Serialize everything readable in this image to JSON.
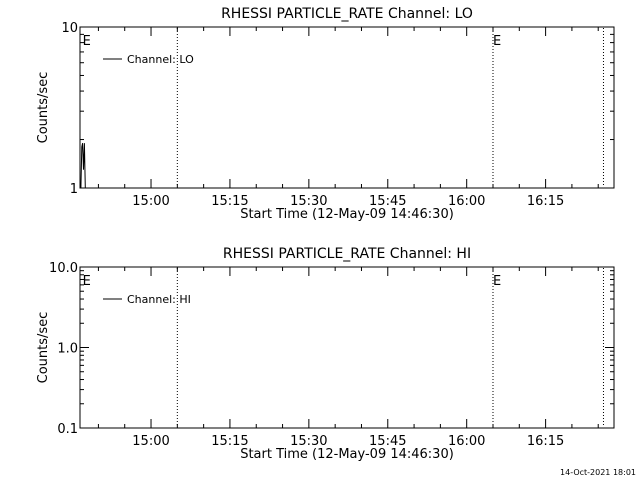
{
  "footer_timestamp": "14-Oct-2021 18:01",
  "chart_data": [
    {
      "type": "line",
      "title": "RHESSI PARTICLE_RATE Channel: LO",
      "xlabel": "Start Time (12-May-09 14:46:30)",
      "ylabel": "Counts/sec",
      "yscale": "log",
      "ylim": [
        1,
        10
      ],
      "ytick_values": [
        1,
        10
      ],
      "ytick_labels": [
        "1",
        "10"
      ],
      "xlim": [
        "14:46:30",
        "16:28:00"
      ],
      "xtick_values": [
        "15:00",
        "15:15",
        "15:30",
        "15:45",
        "16:00",
        "16:15"
      ],
      "xtick_labels": [
        "15:00",
        "15:15",
        "15:30",
        "15:45",
        "16:00",
        "16:15"
      ],
      "grid": false,
      "legend_position": "top-left",
      "series": [
        {
          "name": "Channel: LO",
          "x": [
            "14:46:40",
            "14:46:50",
            "14:47:00",
            "14:47:10",
            "14:47:20",
            "14:47:30"
          ],
          "y": [
            1.0,
            1.8,
            1.9,
            1.3,
            1.9,
            1.0
          ]
        }
      ],
      "event_markers": [
        {
          "time": "14:47:00",
          "label": "E"
        },
        {
          "time": "15:05:00",
          "label": ""
        },
        {
          "time": "16:05:00",
          "label": "E"
        },
        {
          "time": "16:26:00",
          "label": ""
        }
      ]
    },
    {
      "type": "line",
      "title": "RHESSI PARTICLE_RATE Channel: HI",
      "xlabel": "Start Time (12-May-09 14:46:30)",
      "ylabel": "Counts/sec",
      "yscale": "log",
      "ylim": [
        0.1,
        10
      ],
      "ytick_values": [
        0.1,
        1,
        10
      ],
      "ytick_labels": [
        "0.1",
        "1.0",
        "10.0"
      ],
      "xlim": [
        "14:46:30",
        "16:28:00"
      ],
      "xtick_values": [
        "15:00",
        "15:15",
        "15:30",
        "15:45",
        "16:00",
        "16:15"
      ],
      "xtick_labels": [
        "15:00",
        "15:15",
        "15:30",
        "15:45",
        "16:00",
        "16:15"
      ],
      "grid": false,
      "legend_position": "top-left",
      "series": [
        {
          "name": "Channel: HI",
          "x": [],
          "y": []
        }
      ],
      "event_markers": [
        {
          "time": "14:47:00",
          "label": "E"
        },
        {
          "time": "15:05:00",
          "label": ""
        },
        {
          "time": "16:05:00",
          "label": "E"
        },
        {
          "time": "16:26:00",
          "label": ""
        }
      ]
    }
  ]
}
